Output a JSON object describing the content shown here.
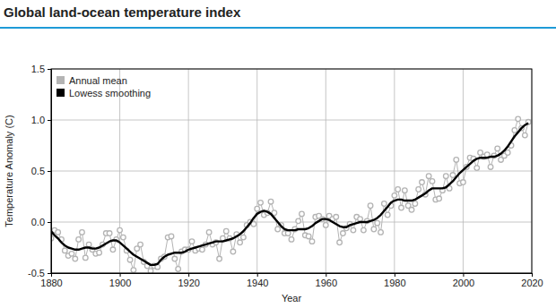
{
  "chart_data": {
    "type": "line",
    "title": "Global land-ocean temperature index",
    "x_label": "Year",
    "y_label": "Temperature Anomaly (C)",
    "x": [
      1880,
      1881,
      1882,
      1883,
      1884,
      1885,
      1886,
      1887,
      1888,
      1889,
      1890,
      1891,
      1892,
      1893,
      1894,
      1895,
      1896,
      1897,
      1898,
      1899,
      1900,
      1901,
      1902,
      1903,
      1904,
      1905,
      1906,
      1907,
      1908,
      1909,
      1910,
      1911,
      1912,
      1913,
      1914,
      1915,
      1916,
      1917,
      1918,
      1919,
      1920,
      1921,
      1922,
      1923,
      1924,
      1925,
      1926,
      1927,
      1928,
      1929,
      1930,
      1931,
      1932,
      1933,
      1934,
      1935,
      1936,
      1937,
      1938,
      1939,
      1940,
      1941,
      1942,
      1943,
      1944,
      1945,
      1946,
      1947,
      1948,
      1949,
      1950,
      1951,
      1952,
      1953,
      1954,
      1955,
      1956,
      1957,
      1958,
      1959,
      1960,
      1961,
      1962,
      1963,
      1964,
      1965,
      1966,
      1967,
      1968,
      1969,
      1970,
      1971,
      1972,
      1973,
      1974,
      1975,
      1976,
      1977,
      1978,
      1979,
      1980,
      1981,
      1982,
      1983,
      1984,
      1985,
      1986,
      1987,
      1988,
      1989,
      1990,
      1991,
      1992,
      1993,
      1994,
      1995,
      1996,
      1997,
      1998,
      1999,
      2000,
      2001,
      2002,
      2003,
      2004,
      2005,
      2006,
      2007,
      2008,
      2009,
      2010,
      2011,
      2012,
      2013,
      2014,
      2015,
      2016,
      2017,
      2018,
      2019
    ],
    "series": [
      {
        "name": "Annual mean",
        "color": "#b4b4b4",
        "marker": "circle",
        "values": [
          -0.16,
          -0.08,
          -0.1,
          -0.17,
          -0.28,
          -0.33,
          -0.31,
          -0.36,
          -0.17,
          -0.1,
          -0.35,
          -0.22,
          -0.27,
          -0.31,
          -0.3,
          -0.22,
          -0.11,
          -0.11,
          -0.27,
          -0.17,
          -0.08,
          -0.15,
          -0.28,
          -0.37,
          -0.47,
          -0.26,
          -0.22,
          -0.39,
          -0.43,
          -0.48,
          -0.43,
          -0.44,
          -0.36,
          -0.34,
          -0.15,
          -0.14,
          -0.36,
          -0.46,
          -0.29,
          -0.27,
          -0.27,
          -0.19,
          -0.28,
          -0.26,
          -0.27,
          -0.22,
          -0.1,
          -0.22,
          -0.2,
          -0.36,
          -0.16,
          -0.09,
          -0.16,
          -0.29,
          -0.12,
          -0.2,
          -0.15,
          -0.03,
          0.0,
          -0.02,
          0.13,
          0.19,
          0.07,
          0.09,
          0.2,
          0.09,
          -0.07,
          -0.03,
          -0.11,
          -0.11,
          -0.17,
          -0.07,
          0.01,
          0.08,
          -0.13,
          -0.14,
          -0.19,
          0.05,
          0.06,
          0.03,
          -0.03,
          0.06,
          0.03,
          0.05,
          -0.2,
          -0.11,
          -0.06,
          -0.02,
          -0.08,
          0.05,
          0.03,
          -0.08,
          0.01,
          0.16,
          -0.07,
          -0.01,
          -0.1,
          0.18,
          0.07,
          0.16,
          0.26,
          0.32,
          0.14,
          0.31,
          0.16,
          0.12,
          0.18,
          0.32,
          0.39,
          0.27,
          0.45,
          0.4,
          0.22,
          0.23,
          0.31,
          0.45,
          0.33,
          0.46,
          0.61,
          0.38,
          0.39,
          0.54,
          0.63,
          0.62,
          0.53,
          0.68,
          0.64,
          0.66,
          0.54,
          0.65,
          0.72,
          0.61,
          0.65,
          0.68,
          0.75,
          0.9,
          1.01,
          0.92,
          0.85,
          0.98
        ]
      },
      {
        "name": "Lowess smoothing",
        "color": "#000000",
        "values": [
          -0.09,
          -0.13,
          -0.16,
          -0.2,
          -0.23,
          -0.25,
          -0.26,
          -0.27,
          -0.27,
          -0.26,
          -0.25,
          -0.25,
          -0.26,
          -0.26,
          -0.25,
          -0.23,
          -0.21,
          -0.19,
          -0.18,
          -0.18,
          -0.2,
          -0.23,
          -0.26,
          -0.29,
          -0.32,
          -0.34,
          -0.36,
          -0.38,
          -0.4,
          -0.42,
          -0.42,
          -0.41,
          -0.37,
          -0.34,
          -0.32,
          -0.31,
          -0.3,
          -0.3,
          -0.3,
          -0.29,
          -0.27,
          -0.26,
          -0.25,
          -0.24,
          -0.23,
          -0.22,
          -0.21,
          -0.2,
          -0.19,
          -0.19,
          -0.19,
          -0.18,
          -0.17,
          -0.16,
          -0.14,
          -0.12,
          -0.09,
          -0.05,
          -0.01,
          0.04,
          0.08,
          0.1,
          0.11,
          0.1,
          0.08,
          0.04,
          0.0,
          -0.04,
          -0.07,
          -0.08,
          -0.08,
          -0.08,
          -0.07,
          -0.07,
          -0.07,
          -0.06,
          -0.04,
          -0.01,
          0.01,
          0.03,
          0.03,
          0.02,
          0.0,
          -0.02,
          -0.04,
          -0.05,
          -0.05,
          -0.03,
          -0.02,
          -0.01,
          0.0,
          0.0,
          0.0,
          0.01,
          0.02,
          0.04,
          0.07,
          0.11,
          0.15,
          0.19,
          0.21,
          0.22,
          0.22,
          0.21,
          0.21,
          0.21,
          0.22,
          0.24,
          0.26,
          0.28,
          0.31,
          0.33,
          0.33,
          0.33,
          0.33,
          0.34,
          0.37,
          0.4,
          0.44,
          0.48,
          0.51,
          0.54,
          0.57,
          0.6,
          0.62,
          0.63,
          0.63,
          0.63,
          0.64,
          0.64,
          0.65,
          0.67,
          0.7,
          0.74,
          0.79,
          0.84,
          0.88,
          0.92,
          0.95,
          0.97
        ]
      }
    ],
    "xlim": [
      1880,
      2020
    ],
    "xticks": [
      1880,
      1900,
      1920,
      1940,
      1960,
      1980,
      2000,
      2020
    ],
    "ylim": [
      -0.5,
      1.5
    ],
    "yticks": [
      -0.5,
      {
        "value": 0,
        "label": "0.0"
      },
      0.5,
      {
        "value": 1,
        "label": "1.0"
      },
      1.5
    ],
    "grid": true,
    "legend": "upper left"
  }
}
